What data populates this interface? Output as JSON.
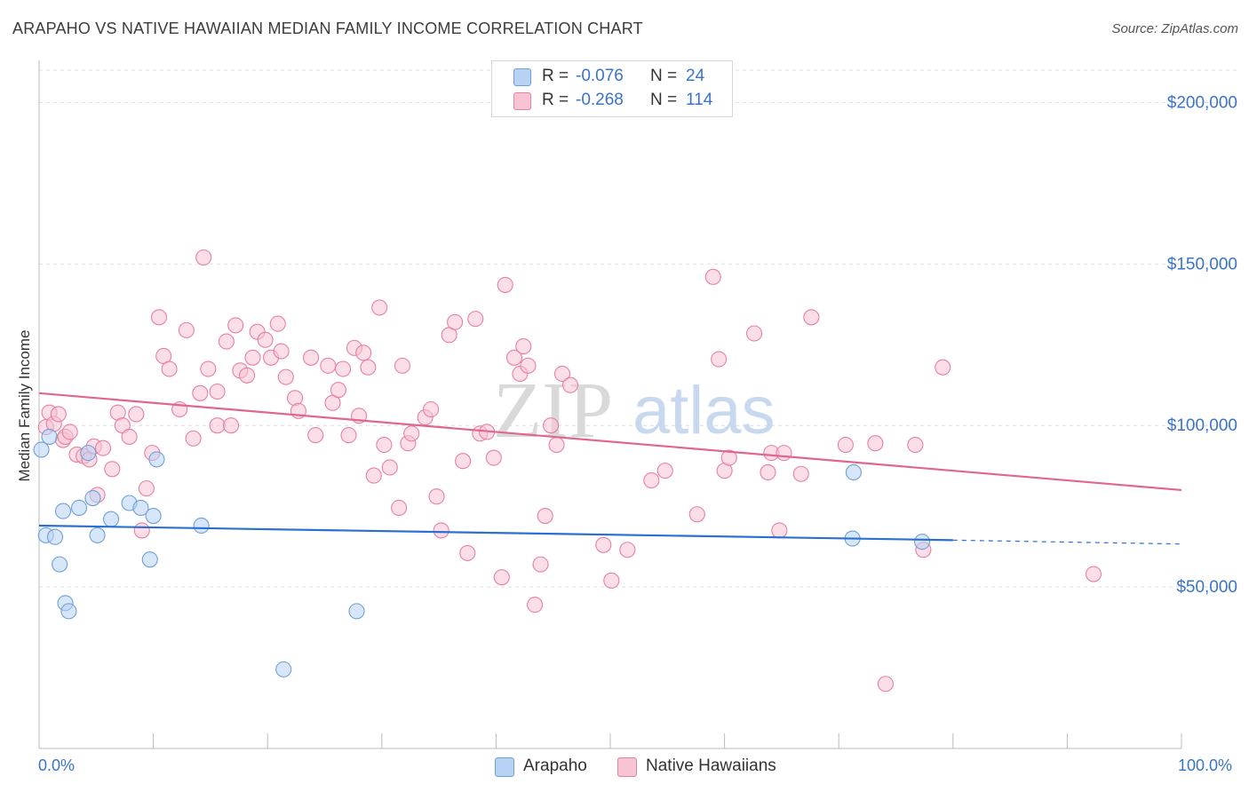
{
  "title": "ARAPAHO VS NATIVE HAWAIIAN MEDIAN FAMILY INCOME CORRELATION CHART",
  "source": "Source: ZipAtlas.com",
  "watermark": {
    "zip": "ZIP",
    "atlas": "atlas"
  },
  "legend": [
    {
      "r_label": "R =",
      "r_value": "-0.076",
      "n_label": "N =",
      "n_value": "24"
    },
    {
      "r_label": "R =",
      "r_value": "-0.268",
      "n_label": "N =",
      "n_value": "114"
    }
  ],
  "bottom_legend": [
    "Arapaho",
    "Native Hawaiians"
  ],
  "x_axis": {
    "min_label": "0.0%",
    "max_label": "100.0%"
  },
  "colors": {
    "arapaho_fill": "#b8d2f4",
    "arapaho_stroke": "#6f9fd8",
    "arapaho_line": "#2a6fd1",
    "hawaiian_fill": "#f8c3d3",
    "hawaiian_stroke": "#e8809f",
    "hawaiian_line": "#e0668f",
    "axis_label": "#3a74c8",
    "grid": "#dddddd"
  },
  "chart_data": {
    "type": "scatter",
    "title": "ARAPAHO VS NATIVE HAWAIIAN MEDIAN FAMILY INCOME CORRELATION CHART",
    "xlabel": "",
    "ylabel": "Median Family Income",
    "xlim": [
      0,
      100
    ],
    "ylim": [
      0,
      210000
    ],
    "y_ticks": [
      {
        "value": 50000,
        "label": "$50,000"
      },
      {
        "value": 100000,
        "label": "$100,000"
      },
      {
        "value": 150000,
        "label": "$150,000"
      },
      {
        "value": 200000,
        "label": "$200,000"
      }
    ],
    "x_ticks": [
      0,
      10,
      20,
      30,
      40,
      50,
      60,
      70,
      80,
      90,
      100
    ],
    "grid": true,
    "series": [
      {
        "name": "Arapaho",
        "r": -0.076,
        "n": 24,
        "trend": {
          "x0": 0,
          "y0": 69000,
          "x1": 80,
          "y1": 64500,
          "dash_to_x": 100,
          "dash_to_y": 63300
        },
        "points": [
          [
            0.2,
            92500
          ],
          [
            0.9,
            96500
          ],
          [
            0.6,
            66000
          ],
          [
            1.4,
            65500
          ],
          [
            1.8,
            57000
          ],
          [
            2.1,
            73500
          ],
          [
            2.3,
            45000
          ],
          [
            2.6,
            42500
          ],
          [
            3.5,
            74500
          ],
          [
            4.3,
            91500
          ],
          [
            4.7,
            77500
          ],
          [
            5.1,
            66000
          ],
          [
            6.3,
            71000
          ],
          [
            7.9,
            76000
          ],
          [
            8.9,
            74500
          ],
          [
            9.7,
            58500
          ],
          [
            10.0,
            72000
          ],
          [
            10.3,
            89500
          ],
          [
            14.2,
            69000
          ],
          [
            21.4,
            24500
          ],
          [
            27.8,
            42500
          ],
          [
            71.2,
            65000
          ],
          [
            71.3,
            85500
          ],
          [
            77.3,
            64000
          ]
        ]
      },
      {
        "name": "Native Hawaiians",
        "r": -0.268,
        "n": 114,
        "trend": {
          "x0": 0,
          "y0": 110000,
          "x1": 100,
          "y1": 80000
        },
        "points": [
          [
            0.6,
            99500
          ],
          [
            0.9,
            104000
          ],
          [
            1.3,
            100500
          ],
          [
            1.7,
            103500
          ],
          [
            2.1,
            95500
          ],
          [
            2.3,
            96500
          ],
          [
            2.7,
            98000
          ],
          [
            3.3,
            91000
          ],
          [
            3.9,
            90500
          ],
          [
            4.4,
            89500
          ],
          [
            4.8,
            93500
          ],
          [
            5.1,
            78500
          ],
          [
            5.6,
            93000
          ],
          [
            6.4,
            86500
          ],
          [
            6.9,
            104000
          ],
          [
            7.3,
            100000
          ],
          [
            7.9,
            96500
          ],
          [
            8.5,
            103500
          ],
          [
            9.0,
            67500
          ],
          [
            9.4,
            80500
          ],
          [
            9.9,
            91500
          ],
          [
            10.5,
            133500
          ],
          [
            10.9,
            121500
          ],
          [
            11.4,
            117500
          ],
          [
            12.3,
            105000
          ],
          [
            12.9,
            129500
          ],
          [
            13.5,
            96000
          ],
          [
            14.1,
            110000
          ],
          [
            14.4,
            152000
          ],
          [
            14.8,
            117500
          ],
          [
            15.6,
            110500
          ],
          [
            15.6,
            100000
          ],
          [
            16.4,
            126000
          ],
          [
            16.8,
            100000
          ],
          [
            17.2,
            131000
          ],
          [
            17.6,
            117000
          ],
          [
            18.2,
            115500
          ],
          [
            18.7,
            121000
          ],
          [
            19.1,
            129000
          ],
          [
            19.8,
            126500
          ],
          [
            20.3,
            121000
          ],
          [
            20.9,
            131500
          ],
          [
            21.2,
            123000
          ],
          [
            21.6,
            115000
          ],
          [
            22.4,
            108500
          ],
          [
            22.7,
            104500
          ],
          [
            23.8,
            121000
          ],
          [
            24.2,
            97000
          ],
          [
            25.3,
            118500
          ],
          [
            25.7,
            107000
          ],
          [
            26.2,
            111000
          ],
          [
            26.6,
            117500
          ],
          [
            27.1,
            97000
          ],
          [
            27.6,
            124000
          ],
          [
            28.0,
            103000
          ],
          [
            28.4,
            122500
          ],
          [
            28.8,
            118000
          ],
          [
            29.3,
            84500
          ],
          [
            29.8,
            136500
          ],
          [
            30.2,
            94000
          ],
          [
            30.7,
            87000
          ],
          [
            31.5,
            74500
          ],
          [
            31.8,
            118500
          ],
          [
            32.3,
            94500
          ],
          [
            32.6,
            97500
          ],
          [
            33.8,
            102500
          ],
          [
            34.3,
            105000
          ],
          [
            34.8,
            78000
          ],
          [
            35.2,
            67500
          ],
          [
            35.9,
            128000
          ],
          [
            36.4,
            132000
          ],
          [
            37.1,
            89000
          ],
          [
            37.5,
            60500
          ],
          [
            38.2,
            133000
          ],
          [
            38.6,
            97500
          ],
          [
            39.2,
            98000
          ],
          [
            39.8,
            90000
          ],
          [
            40.5,
            53000
          ],
          [
            40.8,
            143500
          ],
          [
            41.6,
            121000
          ],
          [
            42.1,
            116000
          ],
          [
            42.4,
            124500
          ],
          [
            42.8,
            118500
          ],
          [
            43.4,
            44500
          ],
          [
            43.9,
            57000
          ],
          [
            44.3,
            72000
          ],
          [
            44.8,
            100000
          ],
          [
            45.3,
            94000
          ],
          [
            45.8,
            116000
          ],
          [
            46.5,
            112500
          ],
          [
            49.4,
            63000
          ],
          [
            50.1,
            52000
          ],
          [
            51.5,
            61500
          ],
          [
            53.6,
            83000
          ],
          [
            54.8,
            86000
          ],
          [
            57.6,
            72500
          ],
          [
            59.0,
            146000
          ],
          [
            59.5,
            120500
          ],
          [
            60.0,
            86000
          ],
          [
            60.4,
            90000
          ],
          [
            62.6,
            128500
          ],
          [
            63.8,
            85500
          ],
          [
            64.1,
            91500
          ],
          [
            64.8,
            67500
          ],
          [
            65.2,
            91500
          ],
          [
            66.7,
            85000
          ],
          [
            67.6,
            133500
          ],
          [
            70.6,
            94000
          ],
          [
            73.2,
            94500
          ],
          [
            74.1,
            20000
          ],
          [
            76.7,
            94000
          ],
          [
            77.4,
            61500
          ],
          [
            79.1,
            118000
          ],
          [
            92.3,
            54000
          ]
        ]
      }
    ]
  }
}
